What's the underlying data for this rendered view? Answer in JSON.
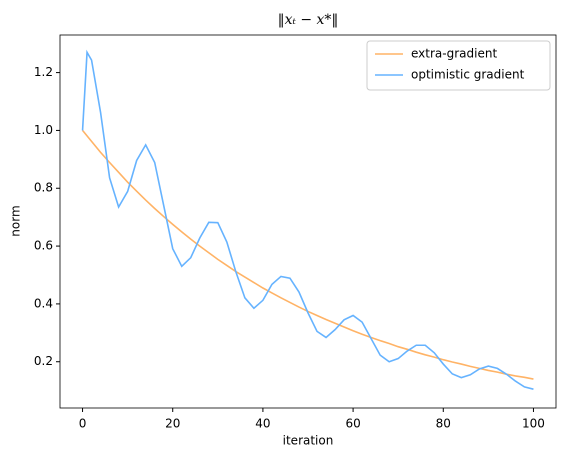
{
  "chart_data": {
    "type": "line",
    "title": "‖xₜ − x*‖",
    "x_label": "iteration",
    "y_label": "norm",
    "x": [
      0,
      1,
      2,
      4,
      6,
      8,
      10,
      12,
      14,
      16,
      18,
      20,
      22,
      24,
      26,
      28,
      30,
      32,
      34,
      36,
      38,
      40,
      42,
      44,
      46,
      48,
      50,
      52,
      54,
      56,
      58,
      60,
      62,
      64,
      66,
      68,
      70,
      72,
      74,
      76,
      78,
      80,
      82,
      84,
      86,
      88,
      90,
      92,
      94,
      96,
      98,
      100
    ],
    "series": [
      {
        "name": "extra-gradient",
        "color": "#ffb366",
        "values": [
          1.0,
          0.981,
          0.962,
          0.924,
          0.889,
          0.855,
          0.821,
          0.79,
          0.759,
          0.73,
          0.702,
          0.675,
          0.649,
          0.624,
          0.6,
          0.577,
          0.554,
          0.533,
          0.512,
          0.493,
          0.474,
          0.455,
          0.438,
          0.421,
          0.405,
          0.389,
          0.374,
          0.36,
          0.346,
          0.333,
          0.32,
          0.307,
          0.295,
          0.284,
          0.273,
          0.263,
          0.252,
          0.243,
          0.233,
          0.224,
          0.216,
          0.207,
          0.199,
          0.192,
          0.184,
          0.177,
          0.17,
          0.164,
          0.157,
          0.151,
          0.146,
          0.14
        ]
      },
      {
        "name": "optimistic gradient",
        "color": "#66b3ff",
        "values": [
          1.0,
          1.27,
          1.243,
          1.062,
          0.836,
          0.735,
          0.789,
          0.896,
          0.95,
          0.889,
          0.74,
          0.591,
          0.53,
          0.56,
          0.628,
          0.682,
          0.681,
          0.614,
          0.511,
          0.421,
          0.385,
          0.4125,
          0.4675,
          0.495,
          0.489,
          0.441,
          0.369,
          0.305,
          0.284,
          0.311,
          0.345,
          0.36,
          0.337,
          0.28,
          0.223,
          0.2,
          0.211,
          0.237,
          0.257,
          0.257,
          0.231,
          0.192,
          0.158,
          0.145,
          0.155,
          0.175,
          0.185,
          0.177,
          0.157,
          0.133,
          0.113,
          0.105
        ]
      }
    ],
    "xlim": [
      -5,
      105
    ],
    "ylim": [
      0.04,
      1.33
    ],
    "xticks": [
      0,
      20,
      40,
      60,
      80,
      100
    ],
    "yticks": [
      0.2,
      0.4,
      0.6,
      0.8,
      {
        "value": 1,
        "label": "1.0"
      },
      1.2
    ],
    "grid": false,
    "legend": "upper right"
  }
}
